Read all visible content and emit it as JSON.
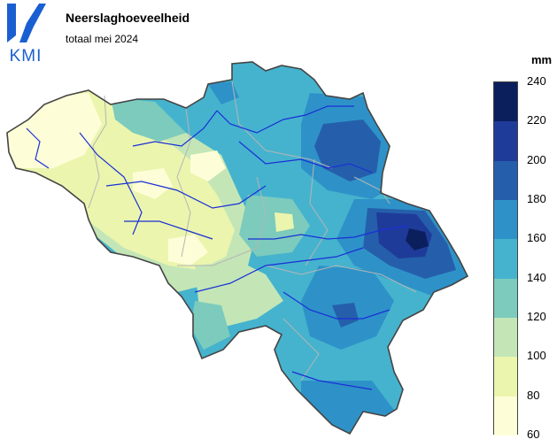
{
  "title": "Neerslaghoeveelheid",
  "subtitle": "totaal mei 2024",
  "logo": {
    "text": "KMI",
    "color": "#1a5fd1"
  },
  "legend": {
    "unit": "mm",
    "ticks": [
      "240",
      "220",
      "200",
      "180",
      "160",
      "140",
      "120",
      "100",
      "80",
      "60"
    ],
    "classes": [
      {
        "range": "220-240",
        "color": "#0b1f5c"
      },
      {
        "range": "200-220",
        "color": "#1f3b9a"
      },
      {
        "range": "180-200",
        "color": "#255fab"
      },
      {
        "range": "160-180",
        "color": "#2e92c8"
      },
      {
        "range": "140-160",
        "color": "#45b3ce"
      },
      {
        "range": "120-140",
        "color": "#7ccbbd"
      },
      {
        "range": "100-120",
        "color": "#c4e6b6"
      },
      {
        "range": "80-100",
        "color": "#ebf5ae"
      },
      {
        "range": "60-80",
        "color": "#fdfed7"
      }
    ]
  },
  "map": {
    "country": "Belgium",
    "variable": "precipitation total",
    "river_color": "#1a2fd6",
    "border_color": "#444444",
    "province_border_color": "#b5b5b5"
  }
}
